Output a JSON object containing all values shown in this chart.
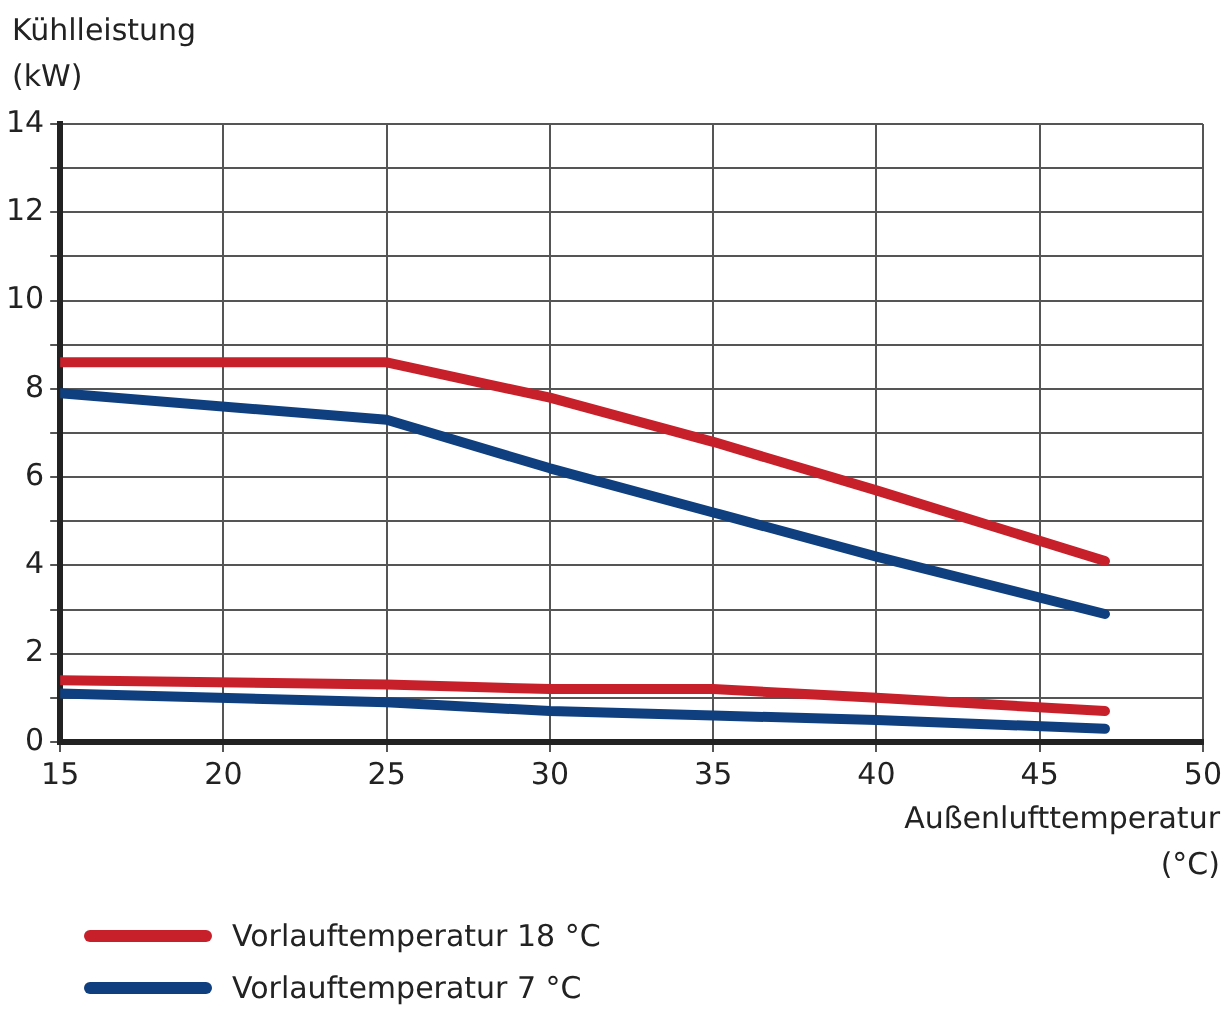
{
  "chart_data": {
    "type": "line",
    "xlabel": "Außenlufttemperatur (°C)",
    "ylabel": "Kühlleistung (kW)",
    "x": [
      15,
      25,
      30,
      35,
      40,
      47
    ],
    "series": [
      {
        "name": "Vorlauftemperatur 18 °C",
        "color": "#c8202b",
        "values": [
          8.6,
          8.6,
          7.8,
          6.8,
          5.7,
          4.1
        ]
      },
      {
        "name": "Vorlauftemperatur 7 °C",
        "color": "#0f3f7f",
        "values": [
          7.9,
          7.3,
          6.2,
          5.2,
          4.2,
          2.9
        ]
      },
      {
        "color": "#c8202b",
        "values": [
          1.4,
          1.3,
          1.2,
          1.2,
          1.0,
          0.7
        ]
      },
      {
        "color": "#0f3f7f",
        "values": [
          1.1,
          0.9,
          0.7,
          0.6,
          0.5,
          0.3
        ]
      }
    ],
    "xlim": [
      15,
      50
    ],
    "xticks": [
      15,
      20,
      25,
      30,
      35,
      40,
      45,
      50
    ],
    "ylim": [
      0,
      14
    ],
    "yticks": [
      0,
      {
        "value": 1,
        "label": null
      },
      2,
      {
        "value": 3,
        "label": null
      },
      4,
      {
        "value": 5,
        "label": null
      },
      6,
      {
        "value": 7,
        "label": null
      },
      8,
      {
        "value": 9,
        "label": null
      },
      10,
      {
        "value": 11,
        "label": null
      },
      12,
      {
        "value": 13,
        "label": null
      },
      14
    ],
    "grid": true,
    "legend": "bottom",
    "marker": "none",
    "line_style": "solid"
  }
}
